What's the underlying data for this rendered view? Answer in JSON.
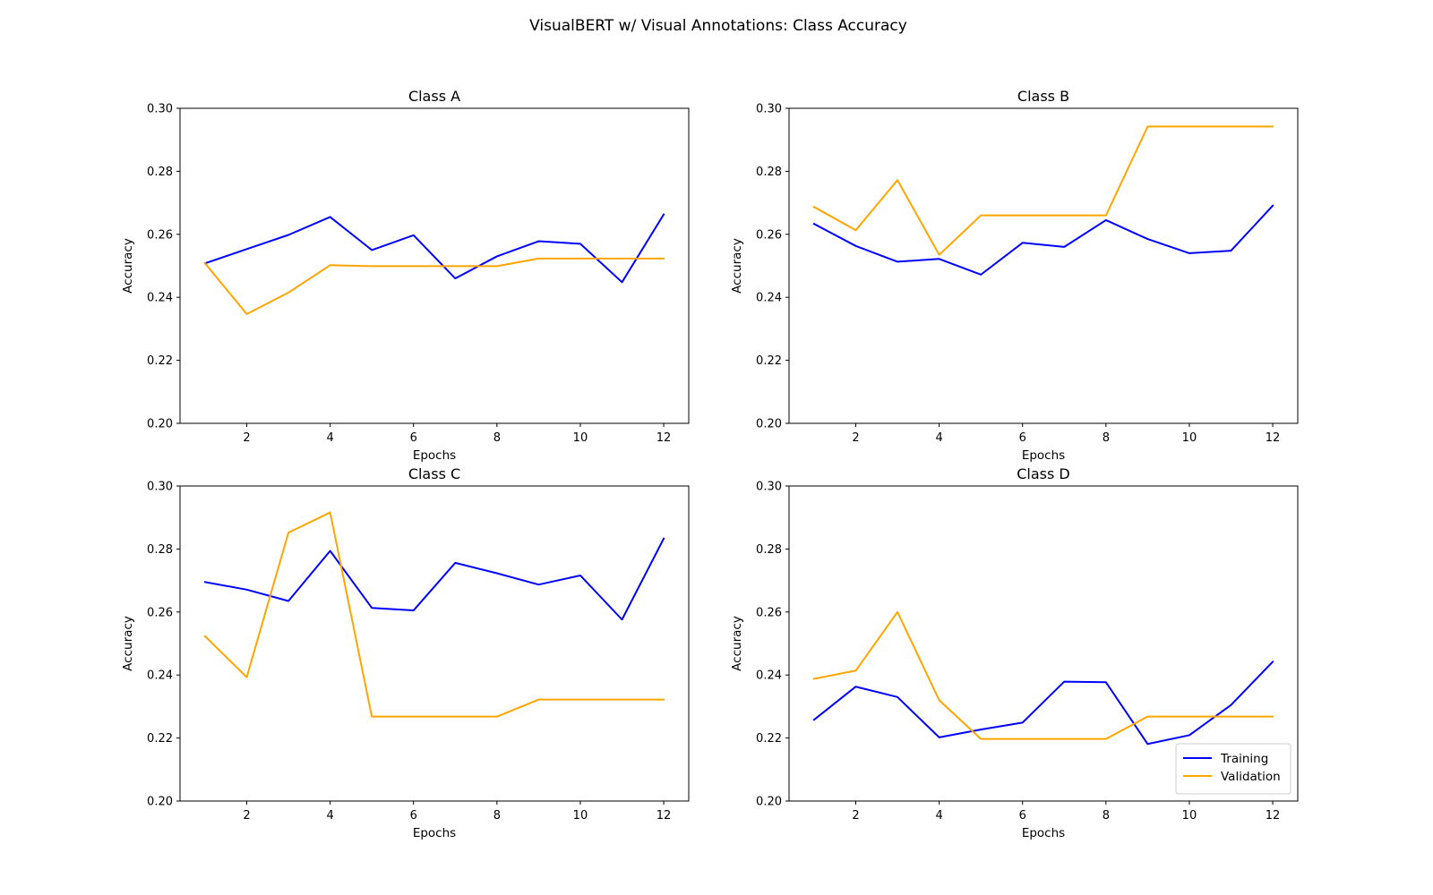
{
  "figure": {
    "title": "VisualBERT w/ Visual Annotations: Class Accuracy"
  },
  "chart_data": [
    {
      "type": "line",
      "title": "Class A",
      "xlabel": "Epochs",
      "ylabel": "Accuracy",
      "x": [
        1,
        2,
        3,
        4,
        5,
        6,
        7,
        8,
        9,
        10,
        11,
        12
      ],
      "xlim": [
        0.4,
        12.6
      ],
      "ylim": [
        0.2,
        0.3
      ],
      "xticks": [
        2,
        4,
        6,
        8,
        10,
        12
      ],
      "yticks": [
        "0.20",
        "0.22",
        "0.24",
        "0.26",
        "0.28",
        "0.30"
      ],
      "legend": false,
      "series": [
        {
          "name": "Training",
          "color": "#0000ff",
          "values": [
            0.2508,
            0.2553,
            0.2598,
            0.2655,
            0.255,
            0.2597,
            0.246,
            0.253,
            0.2578,
            0.257,
            0.2448,
            0.2663
          ]
        },
        {
          "name": "Validation",
          "color": "#ffa500",
          "values": [
            0.2508,
            0.2347,
            0.2415,
            0.2502,
            0.2499,
            0.2499,
            0.2499,
            0.2499,
            0.2523,
            0.2523,
            0.2523,
            0.2523
          ]
        }
      ]
    },
    {
      "type": "line",
      "title": "Class B",
      "xlabel": "Epochs",
      "ylabel": "Accuracy",
      "x": [
        1,
        2,
        3,
        4,
        5,
        6,
        7,
        8,
        9,
        10,
        11,
        12
      ],
      "xlim": [
        0.4,
        12.6
      ],
      "ylim": [
        0.2,
        0.3
      ],
      "xticks": [
        2,
        4,
        6,
        8,
        10,
        12
      ],
      "yticks": [
        "0.20",
        "0.22",
        "0.24",
        "0.26",
        "0.28",
        "0.30"
      ],
      "legend": false,
      "series": [
        {
          "name": "Training",
          "color": "#0000ff",
          "values": [
            0.2633,
            0.2563,
            0.2513,
            0.2522,
            0.2472,
            0.2573,
            0.256,
            0.2645,
            0.2585,
            0.254,
            0.2548,
            0.2691
          ]
        },
        {
          "name": "Validation",
          "color": "#ffa500",
          "values": [
            0.2687,
            0.2613,
            0.2772,
            0.2535,
            0.266,
            0.266,
            0.266,
            0.266,
            0.2942,
            0.2942,
            0.2942,
            0.2942
          ]
        }
      ]
    },
    {
      "type": "line",
      "title": "Class C",
      "xlabel": "Epochs",
      "ylabel": "Accuracy",
      "x": [
        1,
        2,
        3,
        4,
        5,
        6,
        7,
        8,
        9,
        10,
        11,
        12
      ],
      "xlim": [
        0.4,
        12.6
      ],
      "ylim": [
        0.2,
        0.3
      ],
      "xticks": [
        2,
        4,
        6,
        8,
        10,
        12
      ],
      "yticks": [
        "0.20",
        "0.22",
        "0.24",
        "0.26",
        "0.28",
        "0.30"
      ],
      "legend": false,
      "series": [
        {
          "name": "Training",
          "color": "#0000ff",
          "values": [
            0.2695,
            0.2671,
            0.2635,
            0.2794,
            0.2613,
            0.2605,
            0.2756,
            0.2723,
            0.2687,
            0.2716,
            0.2576,
            0.2833
          ]
        },
        {
          "name": "Validation",
          "color": "#ffa500",
          "values": [
            0.2523,
            0.2393,
            0.2852,
            0.2916,
            0.2268,
            0.2268,
            0.2268,
            0.2268,
            0.2322,
            0.2322,
            0.2322,
            0.2322
          ]
        }
      ]
    },
    {
      "type": "line",
      "title": "Class D",
      "xlabel": "Epochs",
      "ylabel": "Accuracy",
      "x": [
        1,
        2,
        3,
        4,
        5,
        6,
        7,
        8,
        9,
        10,
        11,
        12
      ],
      "xlim": [
        0.4,
        12.6
      ],
      "ylim": [
        0.2,
        0.3
      ],
      "xticks": [
        2,
        4,
        6,
        8,
        10,
        12
      ],
      "yticks": [
        "0.20",
        "0.22",
        "0.24",
        "0.26",
        "0.28",
        "0.30"
      ],
      "legend": true,
      "legend_loc": "lower-right",
      "series": [
        {
          "name": "Training",
          "color": "#0000ff",
          "values": [
            0.2258,
            0.2363,
            0.233,
            0.2202,
            0.2227,
            0.2249,
            0.2379,
            0.2377,
            0.2181,
            0.2209,
            0.2305,
            0.2442
          ]
        },
        {
          "name": "Validation",
          "color": "#ffa500",
          "values": [
            0.2388,
            0.2414,
            0.26,
            0.232,
            0.2197,
            0.2197,
            0.2197,
            0.2197,
            0.2268,
            0.2268,
            0.2268,
            0.2268
          ]
        }
      ]
    }
  ]
}
